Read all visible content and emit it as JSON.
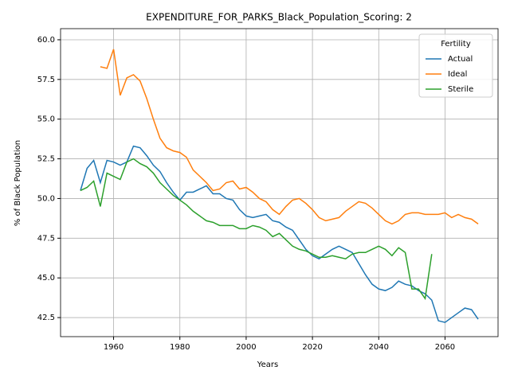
{
  "chart_data": {
    "type": "line",
    "title": "EXPENDITURE_FOR_PARKS_Black_Population_Scoring: 2",
    "x_label": "Years",
    "y_label": "% of Black Population",
    "legend_title": "Fertility",
    "legend": "upper right",
    "grid": true,
    "x": [
      1950,
      1952,
      1954,
      1956,
      1958,
      1960,
      1962,
      1964,
      1966,
      1968,
      1970,
      1972,
      1974,
      1976,
      1978,
      1980,
      1982,
      1984,
      1986,
      1988,
      1990,
      1992,
      1994,
      1996,
      1998,
      2000,
      2002,
      2004,
      2006,
      2008,
      2010,
      2012,
      2014,
      2016,
      2018,
      2020,
      2022,
      2024,
      2026,
      2028,
      2030,
      2032,
      2034,
      2036,
      2038,
      2040,
      2042,
      2044,
      2046,
      2048,
      2050,
      2052,
      2054,
      2056,
      2058,
      2060,
      2062,
      2064,
      2066,
      2068,
      2070
    ],
    "series": [
      {
        "name": "Actual",
        "color": "#1f77b4",
        "values": [
          50.5,
          51.9,
          52.4,
          51.0,
          52.4,
          52.3,
          52.1,
          52.3,
          53.3,
          53.2,
          52.7,
          52.1,
          51.7,
          51.0,
          50.4,
          49.9,
          50.4,
          50.4,
          50.6,
          50.8,
          50.3,
          50.3,
          50.0,
          49.9,
          49.3,
          48.9,
          48.8,
          48.9,
          49.0,
          48.6,
          48.5,
          48.2,
          48.0,
          47.4,
          46.8,
          46.4,
          46.2,
          46.5,
          46.8,
          47.0,
          46.8,
          46.6,
          45.9,
          45.2,
          44.6,
          44.3,
          44.2,
          44.4,
          44.8,
          44.6,
          44.5,
          44.2,
          44.0,
          43.6,
          42.3,
          42.2,
          42.5,
          42.8,
          43.1,
          43.0,
          42.4
        ]
      },
      {
        "name": "Ideal",
        "color": "#ff7f0e",
        "values": [
          null,
          null,
          null,
          58.3,
          58.2,
          59.4,
          56.5,
          57.6,
          57.8,
          57.4,
          56.3,
          55.0,
          53.8,
          53.2,
          53.0,
          52.9,
          52.6,
          51.8,
          51.4,
          51.0,
          50.5,
          50.6,
          51.0,
          51.1,
          50.6,
          50.7,
          50.4,
          50.0,
          49.8,
          49.3,
          49.0,
          49.5,
          49.9,
          50.0,
          49.7,
          49.3,
          48.8,
          48.6,
          48.7,
          48.8,
          49.2,
          49.5,
          49.8,
          49.7,
          49.4,
          49.0,
          48.6,
          48.4,
          48.6,
          49.0,
          49.1,
          49.1,
          49.0,
          49.0,
          49.0,
          49.1,
          48.8,
          49.0,
          48.8,
          48.7,
          48.4
        ]
      },
      {
        "name": "Sterile",
        "color": "#2ca02c",
        "values": [
          50.5,
          50.7,
          51.1,
          49.5,
          51.6,
          51.4,
          51.2,
          52.3,
          52.5,
          52.2,
          52.0,
          51.6,
          51.0,
          50.6,
          50.2,
          49.9,
          49.6,
          49.2,
          48.9,
          48.6,
          48.5,
          48.3,
          48.3,
          48.3,
          48.1,
          48.1,
          48.3,
          48.2,
          48.0,
          47.6,
          47.8,
          47.4,
          47.0,
          46.8,
          46.7,
          46.5,
          46.3,
          46.3,
          46.4,
          46.3,
          46.2,
          46.5,
          46.6,
          46.6,
          46.8,
          47.0,
          46.8,
          46.4,
          46.9,
          46.6,
          44.3,
          44.3,
          43.7,
          46.5,
          null,
          null,
          null,
          null,
          null,
          null,
          null
        ]
      }
    ],
    "xlim": [
      1944,
      2076
    ],
    "xticks": [
      1960,
      1980,
      2000,
      2020,
      2040,
      2060
    ],
    "ylim": [
      41.3,
      60.7
    ],
    "yticks": [
      {
        "value": 42.5,
        "label": "42.5"
      },
      {
        "value": 45,
        "label": "45.0"
      },
      {
        "value": 47.5,
        "label": "47.5"
      },
      {
        "value": 50,
        "label": "50.0"
      },
      {
        "value": 52.5,
        "label": "52.5"
      },
      {
        "value": 55,
        "label": "55.0"
      },
      {
        "value": 57.5,
        "label": "57.5"
      },
      {
        "value": 60,
        "label": "60.0"
      }
    ]
  }
}
